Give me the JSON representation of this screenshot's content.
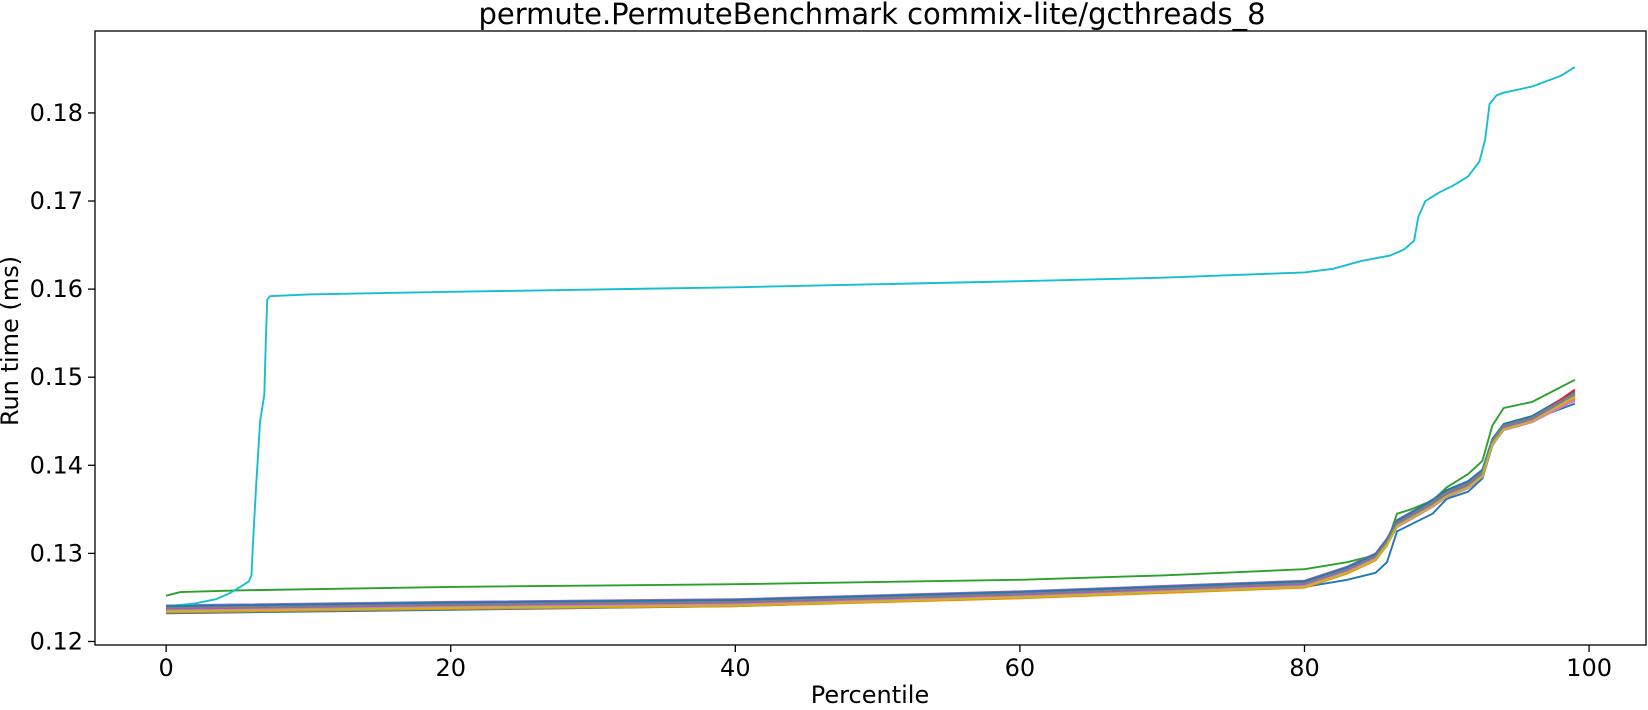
{
  "chart_data": {
    "type": "line",
    "title": "permute.PermuteBenchmark commix-lite/gcthreads_8",
    "xlabel": "Percentile",
    "ylabel": "Run time (ms)",
    "xlim": [
      -5,
      104
    ],
    "ylim": [
      0.1196,
      0.1893
    ],
    "xticks": [
      0,
      20,
      40,
      60,
      80,
      100
    ],
    "xtick_labels": [
      "0",
      "20",
      "40",
      "60",
      "80",
      "100"
    ],
    "yticks": [
      0.12,
      0.13,
      0.14,
      0.15,
      0.16,
      0.17,
      0.18
    ],
    "ytick_labels": [
      "0.12",
      "0.13",
      "0.14",
      "0.15",
      "0.16",
      "0.17",
      "0.18"
    ],
    "grid": false,
    "legend": "none",
    "shared_shape": {
      "x": [
        0,
        5,
        20,
        40,
        60,
        70,
        80,
        83,
        85,
        85.8,
        86.5,
        87.5,
        89,
        90,
        91.5,
        92.5,
        93.2,
        94,
        96,
        99
      ],
      "y": [
        0,
        0.0001,
        0.0003,
        0.0006,
        0.0015,
        0.0021,
        0.0027,
        0.0043,
        0.0058,
        0.0075,
        0.0098,
        0.0107,
        0.0122,
        0.0133,
        0.0143,
        0.0156,
        0.0191,
        0.0207,
        0.0216,
        0.0235
      ]
    },
    "series": [
      {
        "color": "#1f77b4",
        "x": [
          0,
          5,
          20,
          40,
          60,
          70,
          80,
          83,
          85,
          85.8,
          86.5,
          87.5,
          89,
          90,
          91.5,
          92.5,
          93.2,
          94,
          96,
          99
        ],
        "y": [
          0.1232,
          0.1233,
          0.1236,
          0.124,
          0.125,
          0.1256,
          0.1262,
          0.127,
          0.1278,
          0.129,
          0.1325,
          0.1333,
          0.1345,
          0.1362,
          0.137,
          0.1385,
          0.1422,
          0.1443,
          0.1452,
          0.147
        ]
      },
      {
        "color": "#ff7f0e",
        "x": [
          0,
          5,
          20,
          40,
          60,
          70,
          80,
          83,
          85,
          85.8,
          86.5,
          87.5,
          89,
          90,
          91.5,
          92.5,
          93.2,
          94,
          96,
          99
        ],
        "y": [
          0.1236,
          0.1237,
          0.124,
          0.1243,
          0.1252,
          0.1258,
          0.1264,
          0.128,
          0.1295,
          0.1312,
          0.1335,
          0.1343,
          0.1358,
          0.1369,
          0.1379,
          0.1392,
          0.1427,
          0.1443,
          0.1452,
          0.1478
        ]
      },
      {
        "color": "#2ca02c",
        "x": [
          0,
          1,
          5,
          20,
          40,
          60,
          70,
          80,
          83,
          85,
          85.8,
          86.5,
          87.5,
          89,
          90,
          91.5,
          92.5,
          93.2,
          94,
          96,
          99
        ],
        "y": [
          0.1252,
          0.1256,
          0.1258,
          0.1262,
          0.1265,
          0.127,
          0.1275,
          0.1282,
          0.129,
          0.1298,
          0.1312,
          0.1345,
          0.135,
          0.136,
          0.1375,
          0.139,
          0.1405,
          0.1445,
          0.1465,
          0.1472,
          0.1497
        ]
      },
      {
        "color": "#d62728",
        "x": [
          0,
          5,
          20,
          40,
          60,
          70,
          80,
          83,
          85,
          85.8,
          86.5,
          87.5,
          89,
          90,
          91.5,
          92.5,
          93.2,
          94,
          96,
          99
        ],
        "y": [
          0.1238,
          0.1239,
          0.1242,
          0.1245,
          0.1254,
          0.126,
          0.1266,
          0.1282,
          0.1297,
          0.1314,
          0.1333,
          0.1342,
          0.1355,
          0.1367,
          0.1377,
          0.139,
          0.1427,
          0.1444,
          0.1453,
          0.1481
        ]
      },
      {
        "color": "#9467bd",
        "x": [
          0,
          5,
          20,
          40,
          60,
          70,
          80,
          83,
          85,
          85.8,
          86.5,
          87.5,
          89,
          90,
          91.5,
          92.5,
          93.2,
          94,
          96,
          99
        ],
        "y": [
          0.1241,
          0.1242,
          0.1245,
          0.1248,
          0.1257,
          0.1263,
          0.1269,
          0.1285,
          0.13,
          0.1317,
          0.1338,
          0.1347,
          0.136,
          0.1371,
          0.1381,
          0.1394,
          0.1429,
          0.1445,
          0.1454,
          0.1473
        ]
      },
      {
        "color": "#8c564b",
        "x": [
          0,
          5,
          20,
          40,
          60,
          70,
          80,
          83,
          85,
          85.8,
          86.5,
          87.5,
          89,
          90,
          91.5,
          92.5,
          93.2,
          94,
          96,
          99
        ],
        "y": [
          0.1234,
          0.1235,
          0.1238,
          0.1241,
          0.125,
          0.1256,
          0.1262,
          0.1278,
          0.1293,
          0.131,
          0.133,
          0.1339,
          0.1353,
          0.1364,
          0.1374,
          0.1387,
          0.1423,
          0.144,
          0.1449,
          0.1475
        ]
      },
      {
        "color": "#e377c2",
        "x": [
          0,
          5,
          20,
          40,
          60,
          70,
          80,
          83,
          85,
          85.8,
          86.5,
          87.5,
          89,
          90,
          91.5,
          92.5,
          93.2,
          94,
          96,
          99
        ],
        "y": [
          0.1239,
          0.124,
          0.1243,
          0.1246,
          0.1255,
          0.1261,
          0.1267,
          0.1283,
          0.1298,
          0.1315,
          0.1334,
          0.1343,
          0.1357,
          0.1368,
          0.1378,
          0.1391,
          0.1428,
          0.1446,
          0.1455,
          0.1483
        ]
      },
      {
        "color": "#7f7f7f",
        "x": [
          0,
          5,
          20,
          40,
          60,
          70,
          80,
          83,
          85,
          85.8,
          86.5,
          87.5,
          89,
          90,
          91.5,
          92.5,
          93.2,
          94,
          96,
          99
        ],
        "y": [
          0.1237,
          0.1238,
          0.1241,
          0.1244,
          0.1253,
          0.1259,
          0.1265,
          0.1281,
          0.1296,
          0.1313,
          0.1336,
          0.1345,
          0.1359,
          0.137,
          0.138,
          0.1393,
          0.1429,
          0.1446,
          0.1455,
          0.148
        ]
      },
      {
        "color": "#bcbd22",
        "x": [
          0,
          5,
          20,
          40,
          60,
          70,
          80,
          83,
          85,
          85.8,
          86.5,
          87.5,
          89,
          90,
          91.5,
          92.5,
          93.2,
          94,
          96,
          99
        ],
        "y": [
          0.1235,
          0.1236,
          0.1239,
          0.1242,
          0.1251,
          0.1257,
          0.1263,
          0.1279,
          0.1294,
          0.1311,
          0.1332,
          0.1341,
          0.1355,
          0.1366,
          0.1376,
          0.1389,
          0.1425,
          0.1442,
          0.1451,
          0.1476
        ]
      },
      {
        "color": "#17becf",
        "x": [
          0,
          2,
          3.5,
          4.5,
          5.2,
          5.8,
          6.0,
          6.1,
          6.3,
          6.6,
          6.9,
          7.0,
          7.1,
          7.3,
          10,
          20,
          40,
          60,
          70,
          80,
          82,
          84,
          86,
          87,
          87.7,
          88,
          88.5,
          89,
          89.5,
          90.5,
          91.5,
          92.3,
          92.7,
          93.0,
          93.5,
          94,
          96,
          98,
          99
        ],
        "y": [
          0.124,
          0.1243,
          0.1248,
          0.1255,
          0.1262,
          0.1268,
          0.1275,
          0.131,
          0.137,
          0.145,
          0.148,
          0.154,
          0.1588,
          0.1592,
          0.1594,
          0.1597,
          0.1602,
          0.1609,
          0.1613,
          0.1619,
          0.1623,
          0.1632,
          0.1638,
          0.1645,
          0.1655,
          0.1682,
          0.17,
          0.1705,
          0.171,
          0.1718,
          0.1728,
          0.1745,
          0.177,
          0.181,
          0.182,
          0.1823,
          0.183,
          0.1842,
          0.1852
        ]
      },
      {
        "color": "#1f77b4",
        "x": [
          0,
          5,
          20,
          40,
          60,
          70,
          80,
          83,
          85,
          85.8,
          86.5,
          87.5,
          89,
          90,
          91.5,
          92.5,
          93.2,
          94,
          96,
          99
        ],
        "y": [
          0.124,
          0.1241,
          0.1244,
          0.1247,
          0.1256,
          0.1262,
          0.1268,
          0.1284,
          0.1299,
          0.1316,
          0.1337,
          0.1346,
          0.1361,
          0.1372,
          0.1382,
          0.1395,
          0.143,
          0.1447,
          0.1456,
          0.1484
        ]
      },
      {
        "color": "#ff7f0e",
        "x": [
          0,
          5,
          20,
          40,
          60,
          70,
          80,
          83,
          85,
          85.8,
          86.5,
          87.5,
          89,
          90,
          91.5,
          92.5,
          93.2,
          94,
          96,
          99
        ],
        "y": [
          0.1233,
          0.1234,
          0.1237,
          0.124,
          0.1249,
          0.1255,
          0.1261,
          0.1277,
          0.1292,
          0.1309,
          0.1331,
          0.134,
          0.1354,
          0.1365,
          0.1375,
          0.1388,
          0.1424,
          0.1441,
          0.145,
          0.1477
        ]
      },
      {
        "color": "#d62728",
        "x": [
          0,
          5,
          20,
          40,
          60,
          70,
          80,
          83,
          85,
          85.8,
          86.5,
          87.5,
          89,
          90,
          91.5,
          92.5,
          93.2,
          94,
          96,
          99
        ],
        "y": [
          0.1237,
          0.1238,
          0.1241,
          0.1244,
          0.1253,
          0.1259,
          0.1265,
          0.1281,
          0.1296,
          0.1313,
          0.1332,
          0.1341,
          0.1356,
          0.1367,
          0.1377,
          0.139,
          0.1426,
          0.1443,
          0.1452,
          0.1486
        ]
      },
      {
        "color": "#9467bd",
        "x": [
          0,
          5,
          20,
          40,
          60,
          70,
          80,
          83,
          85,
          85.8,
          86.5,
          87.5,
          89,
          90,
          91.5,
          92.5,
          93.2,
          94,
          96,
          99
        ],
        "y": [
          0.1236,
          0.1237,
          0.124,
          0.1243,
          0.1252,
          0.1258,
          0.1264,
          0.128,
          0.1295,
          0.1312,
          0.1333,
          0.1342,
          0.1356,
          0.1367,
          0.1377,
          0.139,
          0.1426,
          0.1443,
          0.1452,
          0.1479
        ]
      },
      {
        "color": "#e377c2",
        "x": [
          0,
          5,
          20,
          40,
          60,
          70,
          80,
          83,
          85,
          85.8,
          86.5,
          87.5,
          89,
          90,
          91.5,
          92.5,
          93.2,
          94,
          96,
          99
        ],
        "y": [
          0.1235,
          0.1236,
          0.1239,
          0.1242,
          0.1251,
          0.1257,
          0.1263,
          0.1279,
          0.1294,
          0.1311,
          0.133,
          0.1339,
          0.1353,
          0.1364,
          0.1374,
          0.1387,
          0.1423,
          0.144,
          0.1449,
          0.1474
        ]
      },
      {
        "color": "#7f7f7f",
        "x": [
          0,
          5,
          20,
          40,
          60,
          70,
          80,
          83,
          85,
          85.8,
          86.5,
          87.5,
          89,
          90,
          91.5,
          92.5,
          93.2,
          94,
          96,
          99
        ],
        "y": [
          0.1238,
          0.1239,
          0.1242,
          0.1245,
          0.1254,
          0.126,
          0.1266,
          0.1282,
          0.1297,
          0.1314,
          0.1335,
          0.1344,
          0.1358,
          0.1369,
          0.1379,
          0.1392,
          0.1428,
          0.1445,
          0.1454,
          0.1482
        ]
      },
      {
        "color": "#bcbd22",
        "x": [
          0,
          5,
          20,
          40,
          60,
          70,
          80,
          83,
          85,
          85.8,
          86.5,
          87.5,
          89,
          90,
          91.5,
          92.5,
          93.2,
          94,
          96,
          99
        ],
        "y": [
          0.1234,
          0.1235,
          0.1238,
          0.1241,
          0.125,
          0.1256,
          0.1262,
          0.1278,
          0.1293,
          0.131,
          0.1331,
          0.134,
          0.1354,
          0.1365,
          0.1375,
          0.1388,
          0.1424,
          0.1441,
          0.145,
          0.1478
        ]
      }
    ]
  }
}
